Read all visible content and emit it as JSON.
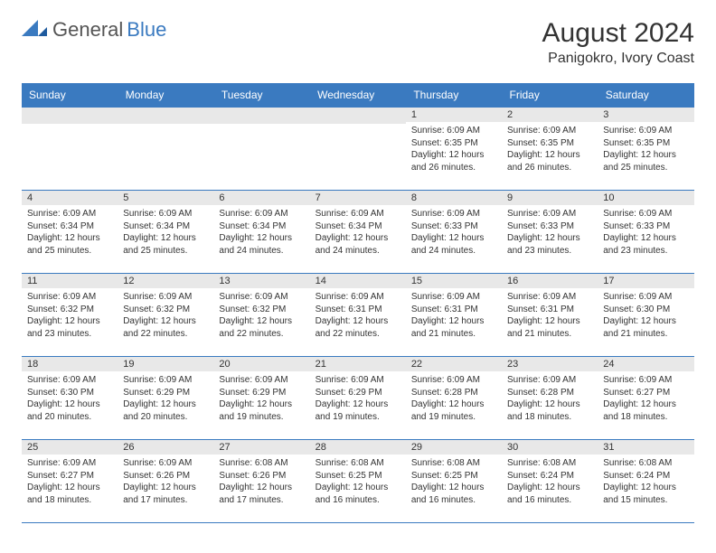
{
  "logo": {
    "general": "General",
    "blue": "Blue"
  },
  "title": {
    "month_year": "August 2024",
    "location": "Panigokro, Ivory Coast"
  },
  "colors": {
    "header_bg": "#3a7ac0",
    "daynum_bg": "#e8e8e8",
    "border": "#3a7ac0"
  },
  "days_of_week": [
    "Sunday",
    "Monday",
    "Tuesday",
    "Wednesday",
    "Thursday",
    "Friday",
    "Saturday"
  ],
  "weeks": [
    [
      null,
      null,
      null,
      null,
      {
        "n": "1",
        "sr": "Sunrise: 6:09 AM",
        "ss": "Sunset: 6:35 PM",
        "d1": "Daylight: 12 hours",
        "d2": "and 26 minutes."
      },
      {
        "n": "2",
        "sr": "Sunrise: 6:09 AM",
        "ss": "Sunset: 6:35 PM",
        "d1": "Daylight: 12 hours",
        "d2": "and 26 minutes."
      },
      {
        "n": "3",
        "sr": "Sunrise: 6:09 AM",
        "ss": "Sunset: 6:35 PM",
        "d1": "Daylight: 12 hours",
        "d2": "and 25 minutes."
      }
    ],
    [
      {
        "n": "4",
        "sr": "Sunrise: 6:09 AM",
        "ss": "Sunset: 6:34 PM",
        "d1": "Daylight: 12 hours",
        "d2": "and 25 minutes."
      },
      {
        "n": "5",
        "sr": "Sunrise: 6:09 AM",
        "ss": "Sunset: 6:34 PM",
        "d1": "Daylight: 12 hours",
        "d2": "and 25 minutes."
      },
      {
        "n": "6",
        "sr": "Sunrise: 6:09 AM",
        "ss": "Sunset: 6:34 PM",
        "d1": "Daylight: 12 hours",
        "d2": "and 24 minutes."
      },
      {
        "n": "7",
        "sr": "Sunrise: 6:09 AM",
        "ss": "Sunset: 6:34 PM",
        "d1": "Daylight: 12 hours",
        "d2": "and 24 minutes."
      },
      {
        "n": "8",
        "sr": "Sunrise: 6:09 AM",
        "ss": "Sunset: 6:33 PM",
        "d1": "Daylight: 12 hours",
        "d2": "and 24 minutes."
      },
      {
        "n": "9",
        "sr": "Sunrise: 6:09 AM",
        "ss": "Sunset: 6:33 PM",
        "d1": "Daylight: 12 hours",
        "d2": "and 23 minutes."
      },
      {
        "n": "10",
        "sr": "Sunrise: 6:09 AM",
        "ss": "Sunset: 6:33 PM",
        "d1": "Daylight: 12 hours",
        "d2": "and 23 minutes."
      }
    ],
    [
      {
        "n": "11",
        "sr": "Sunrise: 6:09 AM",
        "ss": "Sunset: 6:32 PM",
        "d1": "Daylight: 12 hours",
        "d2": "and 23 minutes."
      },
      {
        "n": "12",
        "sr": "Sunrise: 6:09 AM",
        "ss": "Sunset: 6:32 PM",
        "d1": "Daylight: 12 hours",
        "d2": "and 22 minutes."
      },
      {
        "n": "13",
        "sr": "Sunrise: 6:09 AM",
        "ss": "Sunset: 6:32 PM",
        "d1": "Daylight: 12 hours",
        "d2": "and 22 minutes."
      },
      {
        "n": "14",
        "sr": "Sunrise: 6:09 AM",
        "ss": "Sunset: 6:31 PM",
        "d1": "Daylight: 12 hours",
        "d2": "and 22 minutes."
      },
      {
        "n": "15",
        "sr": "Sunrise: 6:09 AM",
        "ss": "Sunset: 6:31 PM",
        "d1": "Daylight: 12 hours",
        "d2": "and 21 minutes."
      },
      {
        "n": "16",
        "sr": "Sunrise: 6:09 AM",
        "ss": "Sunset: 6:31 PM",
        "d1": "Daylight: 12 hours",
        "d2": "and 21 minutes."
      },
      {
        "n": "17",
        "sr": "Sunrise: 6:09 AM",
        "ss": "Sunset: 6:30 PM",
        "d1": "Daylight: 12 hours",
        "d2": "and 21 minutes."
      }
    ],
    [
      {
        "n": "18",
        "sr": "Sunrise: 6:09 AM",
        "ss": "Sunset: 6:30 PM",
        "d1": "Daylight: 12 hours",
        "d2": "and 20 minutes."
      },
      {
        "n": "19",
        "sr": "Sunrise: 6:09 AM",
        "ss": "Sunset: 6:29 PM",
        "d1": "Daylight: 12 hours",
        "d2": "and 20 minutes."
      },
      {
        "n": "20",
        "sr": "Sunrise: 6:09 AM",
        "ss": "Sunset: 6:29 PM",
        "d1": "Daylight: 12 hours",
        "d2": "and 19 minutes."
      },
      {
        "n": "21",
        "sr": "Sunrise: 6:09 AM",
        "ss": "Sunset: 6:29 PM",
        "d1": "Daylight: 12 hours",
        "d2": "and 19 minutes."
      },
      {
        "n": "22",
        "sr": "Sunrise: 6:09 AM",
        "ss": "Sunset: 6:28 PM",
        "d1": "Daylight: 12 hours",
        "d2": "and 19 minutes."
      },
      {
        "n": "23",
        "sr": "Sunrise: 6:09 AM",
        "ss": "Sunset: 6:28 PM",
        "d1": "Daylight: 12 hours",
        "d2": "and 18 minutes."
      },
      {
        "n": "24",
        "sr": "Sunrise: 6:09 AM",
        "ss": "Sunset: 6:27 PM",
        "d1": "Daylight: 12 hours",
        "d2": "and 18 minutes."
      }
    ],
    [
      {
        "n": "25",
        "sr": "Sunrise: 6:09 AM",
        "ss": "Sunset: 6:27 PM",
        "d1": "Daylight: 12 hours",
        "d2": "and 18 minutes."
      },
      {
        "n": "26",
        "sr": "Sunrise: 6:09 AM",
        "ss": "Sunset: 6:26 PM",
        "d1": "Daylight: 12 hours",
        "d2": "and 17 minutes."
      },
      {
        "n": "27",
        "sr": "Sunrise: 6:08 AM",
        "ss": "Sunset: 6:26 PM",
        "d1": "Daylight: 12 hours",
        "d2": "and 17 minutes."
      },
      {
        "n": "28",
        "sr": "Sunrise: 6:08 AM",
        "ss": "Sunset: 6:25 PM",
        "d1": "Daylight: 12 hours",
        "d2": "and 16 minutes."
      },
      {
        "n": "29",
        "sr": "Sunrise: 6:08 AM",
        "ss": "Sunset: 6:25 PM",
        "d1": "Daylight: 12 hours",
        "d2": "and 16 minutes."
      },
      {
        "n": "30",
        "sr": "Sunrise: 6:08 AM",
        "ss": "Sunset: 6:24 PM",
        "d1": "Daylight: 12 hours",
        "d2": "and 16 minutes."
      },
      {
        "n": "31",
        "sr": "Sunrise: 6:08 AM",
        "ss": "Sunset: 6:24 PM",
        "d1": "Daylight: 12 hours",
        "d2": "and 15 minutes."
      }
    ]
  ]
}
